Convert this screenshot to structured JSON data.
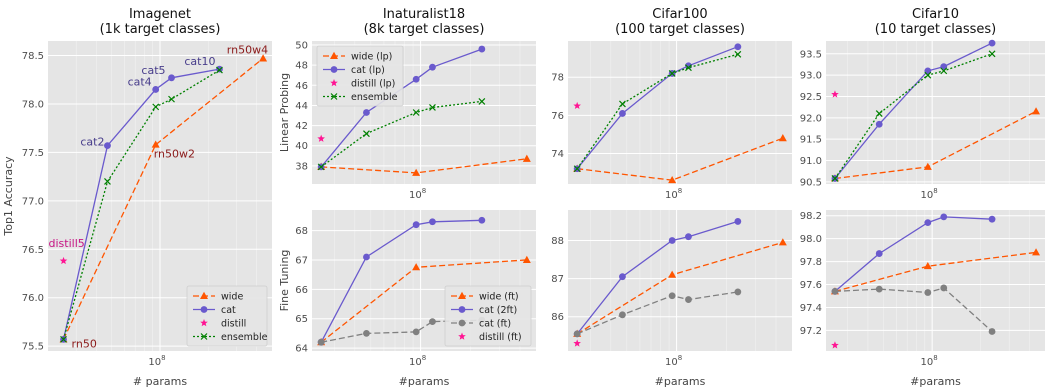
{
  "chart_data": [
    {
      "id": "imagenet",
      "type": "line",
      "title": "Imagenet\n(1k target classes)",
      "xlabel": "# params",
      "ylabel": "Top1 Accuracy",
      "xscale": "log",
      "xlim": [
        20000000,
        500000000
      ],
      "ylim": [
        75.45,
        78.65
      ],
      "yticks": [
        75.5,
        76.0,
        76.5,
        77.0,
        77.5,
        78.0,
        78.5
      ],
      "ytick_labels": [
        "75.5",
        "76.0",
        "76.5",
        "77.0",
        "77.5",
        "78.0",
        "78.5"
      ],
      "xticks": [
        100000000
      ],
      "xtick_labels": [
        "10^8"
      ],
      "grid": true,
      "legend_position": "bottom-right",
      "series": [
        {
          "name": "wide",
          "color": "#ff5500",
          "dash": "6,3",
          "marker": "triangle",
          "x": [
            25000000,
            94000000,
            440000000
          ],
          "y": [
            75.57,
            77.58,
            78.47
          ]
        },
        {
          "name": "cat",
          "color": "#6a5acd",
          "dash": "",
          "marker": "circle",
          "x": [
            25000000,
            47000000,
            94000000,
            118000000,
            235000000
          ],
          "y": [
            75.57,
            77.57,
            78.15,
            78.27,
            78.36
          ]
        },
        {
          "name": "distill",
          "color": "#ff1493",
          "dash": "none",
          "marker": "star",
          "x": [
            25000000
          ],
          "y": [
            76.38
          ]
        },
        {
          "name": "ensemble",
          "color": "#008000",
          "dash": "2,2",
          "marker": "x",
          "x": [
            25000000,
            47000000,
            94000000,
            118000000,
            235000000
          ],
          "y": [
            75.57,
            77.2,
            77.97,
            78.05,
            78.35
          ]
        }
      ],
      "annotations": [
        {
          "text": "rn50w4",
          "x": 440000000,
          "y": 78.47,
          "color": "#8b1a1a",
          "anchor": "end",
          "dx": 5,
          "dy": -5
        },
        {
          "text": "rn50w2",
          "x": 94000000,
          "y": 77.58,
          "color": "#8b1a1a",
          "anchor": "start",
          "dx": -2,
          "dy": 13
        },
        {
          "text": "rn50",
          "x": 25000000,
          "y": 75.57,
          "color": "#8b1a1a",
          "anchor": "start",
          "dx": 8,
          "dy": 8
        },
        {
          "text": "distill5",
          "x": 25000000,
          "y": 76.38,
          "color": "#c71585",
          "anchor": "start",
          "dx": -15,
          "dy": -14
        },
        {
          "text": "cat2",
          "x": 47000000,
          "y": 77.57,
          "color": "#483d8b",
          "anchor": "end",
          "dx": -3,
          "dy": 0
        },
        {
          "text": "cat4",
          "x": 94000000,
          "y": 78.15,
          "color": "#483d8b",
          "anchor": "end",
          "dx": -4,
          "dy": -4
        },
        {
          "text": "cat5",
          "x": 118000000,
          "y": 78.27,
          "color": "#483d8b",
          "anchor": "end",
          "dx": -6,
          "dy": -4
        },
        {
          "text": "cat10",
          "x": 235000000,
          "y": 78.36,
          "color": "#483d8b",
          "anchor": "end",
          "dx": -4,
          "dy": -4
        }
      ]
    },
    {
      "id": "inat_lp",
      "type": "line",
      "title": "Inaturalist18\n(8k target classes)",
      "xlabel": "",
      "ylabel": "Linear Probing",
      "xscale": "log",
      "xlim": [
        22000000,
        500000000
      ],
      "ylim": [
        36.2,
        50.4
      ],
      "yticks": [
        38,
        40,
        42,
        44,
        46,
        48,
        50
      ],
      "ytick_labels": [
        "38",
        "40",
        "42",
        "44",
        "46",
        "48",
        "50"
      ],
      "xticks": [
        100000000
      ],
      "xtick_labels": [
        "10^8"
      ],
      "grid": true,
      "legend_position": "top-left",
      "series": [
        {
          "name": "wide (lp)",
          "color": "#ff5500",
          "dash": "6,3",
          "marker": "triangle",
          "x": [
            25000000,
            94000000,
            440000000
          ],
          "y": [
            37.9,
            37.3,
            38.7
          ]
        },
        {
          "name": "cat (lp)",
          "color": "#6a5acd",
          "dash": "",
          "marker": "circle",
          "x": [
            25000000,
            47000000,
            94000000,
            118000000,
            235000000
          ],
          "y": [
            37.9,
            43.3,
            46.6,
            47.8,
            49.6
          ]
        },
        {
          "name": "distill (lp)",
          "color": "#ff1493",
          "dash": "none",
          "marker": "star",
          "x": [
            25000000
          ],
          "y": [
            40.7
          ]
        },
        {
          "name": "ensemble",
          "color": "#008000",
          "dash": "2,2",
          "marker": "x",
          "x": [
            25000000,
            47000000,
            94000000,
            118000000,
            235000000
          ],
          "y": [
            37.9,
            41.2,
            43.3,
            43.8,
            44.4
          ]
        }
      ]
    },
    {
      "id": "inat_ft",
      "type": "line",
      "title": "",
      "xlabel": "#params",
      "ylabel": "Fine Tuning",
      "xscale": "log",
      "xlim": [
        22000000,
        500000000
      ],
      "ylim": [
        63.9,
        68.7
      ],
      "yticks": [
        64,
        65,
        66,
        67,
        68
      ],
      "ytick_labels": [
        "64",
        "65",
        "66",
        "67",
        "68"
      ],
      "xticks": [
        100000000
      ],
      "xtick_labels": [
        "10^8"
      ],
      "grid": true,
      "legend_position": "bottom-right",
      "series": [
        {
          "name": "wide (ft)",
          "color": "#ff5500",
          "dash": "6,3",
          "marker": "triangle",
          "x": [
            25000000,
            94000000,
            440000000
          ],
          "y": [
            64.2,
            66.75,
            67.0
          ]
        },
        {
          "name": "cat (2ft)",
          "color": "#6a5acd",
          "dash": "",
          "marker": "circle",
          "x": [
            25000000,
            47000000,
            94000000,
            118000000,
            235000000
          ],
          "y": [
            64.2,
            67.1,
            68.2,
            68.3,
            68.35
          ]
        },
        {
          "name": "cat (ft)",
          "color": "#808080",
          "dash": "6,3",
          "marker": "circle",
          "x": [
            25000000,
            47000000,
            94000000,
            118000000,
            235000000
          ],
          "y": [
            64.2,
            64.5,
            64.55,
            64.9,
            64.95
          ]
        },
        {
          "name": "distill (ft)",
          "color": "#ff1493",
          "dash": "none",
          "marker": "star",
          "x": [],
          "y": []
        }
      ]
    },
    {
      "id": "cifar100_lp",
      "type": "line",
      "title": "Cifar100\n(100 target classes)",
      "xlabel": "",
      "ylabel": "",
      "xscale": "log",
      "xlim": [
        22000000,
        500000000
      ],
      "ylim": [
        72.4,
        79.9
      ],
      "yticks": [
        74,
        76,
        78
      ],
      "ytick_labels": [
        "74",
        "76",
        "78"
      ],
      "xticks": [
        100000000
      ],
      "xtick_labels": [
        "10^8"
      ],
      "grid": true,
      "series": [
        {
          "name": "wide",
          "color": "#ff5500",
          "dash": "6,3",
          "marker": "triangle",
          "x": [
            25000000,
            94000000,
            440000000
          ],
          "y": [
            73.2,
            72.6,
            74.8
          ]
        },
        {
          "name": "cat",
          "color": "#6a5acd",
          "dash": "",
          "marker": "circle",
          "x": [
            25000000,
            47000000,
            94000000,
            118000000,
            235000000
          ],
          "y": [
            73.2,
            76.1,
            78.2,
            78.6,
            79.6
          ]
        },
        {
          "name": "distill",
          "color": "#ff1493",
          "dash": "none",
          "marker": "star",
          "x": [
            25000000
          ],
          "y": [
            76.5
          ]
        },
        {
          "name": "ensemble",
          "color": "#008000",
          "dash": "2,2",
          "marker": "x",
          "x": [
            25000000,
            47000000,
            94000000,
            118000000,
            235000000
          ],
          "y": [
            73.2,
            76.6,
            78.2,
            78.5,
            79.2
          ]
        }
      ]
    },
    {
      "id": "cifar100_ft",
      "type": "line",
      "title": "",
      "xlabel": "#params",
      "ylabel": "",
      "xscale": "log",
      "xlim": [
        22000000,
        500000000
      ],
      "ylim": [
        85.1,
        88.8
      ],
      "yticks": [
        86,
        87,
        88
      ],
      "ytick_labels": [
        "86",
        "87",
        "88"
      ],
      "xticks": [
        100000000
      ],
      "xtick_labels": [
        "10^8"
      ],
      "grid": true,
      "series": [
        {
          "name": "wide",
          "color": "#ff5500",
          "dash": "6,3",
          "marker": "triangle",
          "x": [
            25000000,
            94000000,
            440000000
          ],
          "y": [
            85.55,
            87.1,
            87.95
          ]
        },
        {
          "name": "cat (2ft)",
          "color": "#6a5acd",
          "dash": "",
          "marker": "circle",
          "x": [
            25000000,
            47000000,
            94000000,
            118000000,
            235000000
          ],
          "y": [
            85.55,
            87.05,
            88.0,
            88.1,
            88.5
          ]
        },
        {
          "name": "cat (ft)",
          "color": "#808080",
          "dash": "6,3",
          "marker": "circle",
          "x": [
            25000000,
            47000000,
            94000000,
            118000000,
            235000000
          ],
          "y": [
            85.55,
            86.05,
            86.55,
            86.45,
            86.65
          ]
        },
        {
          "name": "distill",
          "color": "#ff1493",
          "dash": "none",
          "marker": "star",
          "x": [
            25000000
          ],
          "y": [
            85.3
          ]
        }
      ]
    },
    {
      "id": "cifar10_lp",
      "type": "line",
      "title": "Cifar10\n(10 target classes)",
      "xlabel": "",
      "ylabel": "",
      "xscale": "log",
      "xlim": [
        22000000,
        500000000
      ],
      "ylim": [
        90.45,
        93.8
      ],
      "yticks": [
        90.5,
        91.0,
        91.5,
        92.0,
        92.5,
        93.0,
        93.5
      ],
      "ytick_labels": [
        "90.5",
        "91.0",
        "91.5",
        "92.0",
        "92.5",
        "93.0",
        "93.5"
      ],
      "xticks": [
        100000000
      ],
      "xtick_labels": [
        "10^8"
      ],
      "grid": true,
      "series": [
        {
          "name": "wide",
          "color": "#ff5500",
          "dash": "6,3",
          "marker": "triangle",
          "x": [
            25000000,
            94000000,
            440000000
          ],
          "y": [
            90.58,
            90.85,
            92.15
          ]
        },
        {
          "name": "cat",
          "color": "#6a5acd",
          "dash": "",
          "marker": "circle",
          "x": [
            25000000,
            47000000,
            94000000,
            118000000,
            235000000
          ],
          "y": [
            90.58,
            91.85,
            93.1,
            93.2,
            93.75
          ]
        },
        {
          "name": "distill",
          "color": "#ff1493",
          "dash": "none",
          "marker": "star",
          "x": [
            25000000
          ],
          "y": [
            92.55
          ]
        },
        {
          "name": "ensemble",
          "color": "#008000",
          "dash": "2,2",
          "marker": "x",
          "x": [
            25000000,
            47000000,
            94000000,
            118000000,
            235000000
          ],
          "y": [
            90.58,
            92.1,
            93.0,
            93.1,
            93.5
          ]
        }
      ]
    },
    {
      "id": "cifar10_ft",
      "type": "line",
      "title": "",
      "xlabel": "#params",
      "ylabel": "",
      "xscale": "log",
      "xlim": [
        22000000,
        500000000
      ],
      "ylim": [
        97.02,
        98.25
      ],
      "yticks": [
        97.2,
        97.4,
        97.6,
        97.8,
        98.0,
        98.2
      ],
      "ytick_labels": [
        "97.2",
        "97.4",
        "97.6",
        "97.8",
        "98.0",
        "98.2"
      ],
      "xticks": [
        100000000
      ],
      "xtick_labels": [
        "10^8"
      ],
      "grid": true,
      "series": [
        {
          "name": "wide",
          "color": "#ff5500",
          "dash": "6,3",
          "marker": "triangle",
          "x": [
            25000000,
            94000000,
            440000000
          ],
          "y": [
            97.54,
            97.76,
            97.88
          ]
        },
        {
          "name": "cat (2ft)",
          "color": "#6a5acd",
          "dash": "",
          "marker": "circle",
          "x": [
            25000000,
            47000000,
            94000000,
            118000000,
            235000000
          ],
          "y": [
            97.54,
            97.87,
            98.14,
            98.19,
            98.17
          ]
        },
        {
          "name": "cat (ft)",
          "color": "#808080",
          "dash": "6,3",
          "marker": "circle",
          "x": [
            25000000,
            47000000,
            94000000,
            118000000,
            235000000
          ],
          "y": [
            97.54,
            97.56,
            97.53,
            97.57,
            97.19
          ]
        },
        {
          "name": "distill",
          "color": "#ff1493",
          "dash": "none",
          "marker": "star",
          "x": [
            25000000
          ],
          "y": [
            97.07
          ]
        }
      ]
    }
  ]
}
